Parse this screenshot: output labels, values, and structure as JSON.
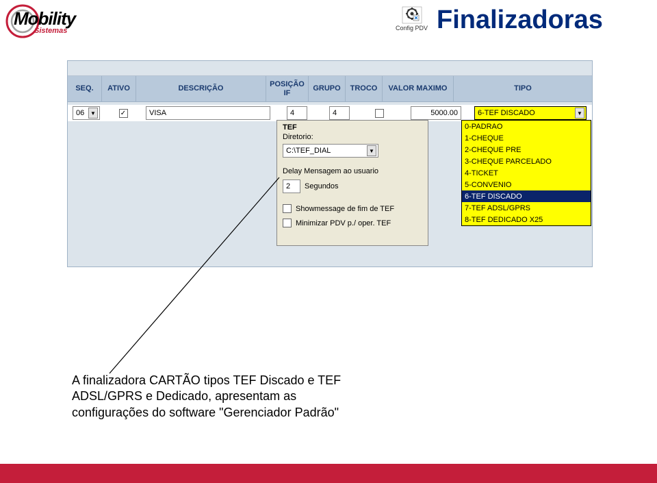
{
  "logo": {
    "main": "Mobility",
    "sub": "Sistemas",
    "ring_outer": "#c41e3a",
    "ring_inner": "#a0a0a0"
  },
  "config_icon": {
    "label": "Config PDV"
  },
  "title": "Finalizadoras",
  "table": {
    "headers": {
      "seq": "SEQ.",
      "ativo": "ATIVO",
      "descricao": "DESCRIÇÃO",
      "posicao_if": "POSIÇÃO IF",
      "grupo": "GRUPO",
      "troco": "TROCO",
      "valor_max": "VALOR MAXIMO",
      "tipo": "TIPO"
    },
    "row": {
      "seq": "06",
      "ativo_checked": "✓",
      "descricao": "VISA",
      "posicao_if": "4",
      "grupo": "4",
      "troco_checked": "",
      "valor_max": "5000.00",
      "tipo": "6-TEF DISCADO"
    }
  },
  "dropdown": {
    "items": [
      "0-PADRAO",
      "1-CHEQUE",
      "2-CHEQUE PRE",
      "3-CHEQUE PARCELADO",
      "4-TICKET",
      "5-CONVENIO",
      "6-TEF DISCADO",
      "7-TEF ADSL/GPRS",
      "8-TEF DEDICADO X25"
    ],
    "selected_index": 6,
    "bg": "#ffff00",
    "sel_bg": "#0a246a",
    "sel_fg": "#ffffff"
  },
  "tef": {
    "title": "TEF",
    "diretorio_label": "Diretorio:",
    "diretorio_value": "C:\\TEF_DIAL",
    "delay_label": "Delay Mensagem ao usuario",
    "delay_value": "2",
    "delay_unit": "Segundos",
    "chk1": "Showmessage de fim de TEF",
    "chk2": "Minimizar PDV p./ oper. TEF"
  },
  "caption": {
    "line1": "A finalizadora CARTÃO tipos TEF Discado e TEF",
    "line2": "ADSL/GPRS e Dedicado, apresentam as",
    "line3": "configurações do software \"Gerenciador Padrão\""
  },
  "colors": {
    "title": "#002a7a",
    "header_bg": "#b8c9db",
    "header_fg": "#1a3a6e",
    "panel_bg": "#dce4eb",
    "footer": "#c41e3a"
  }
}
